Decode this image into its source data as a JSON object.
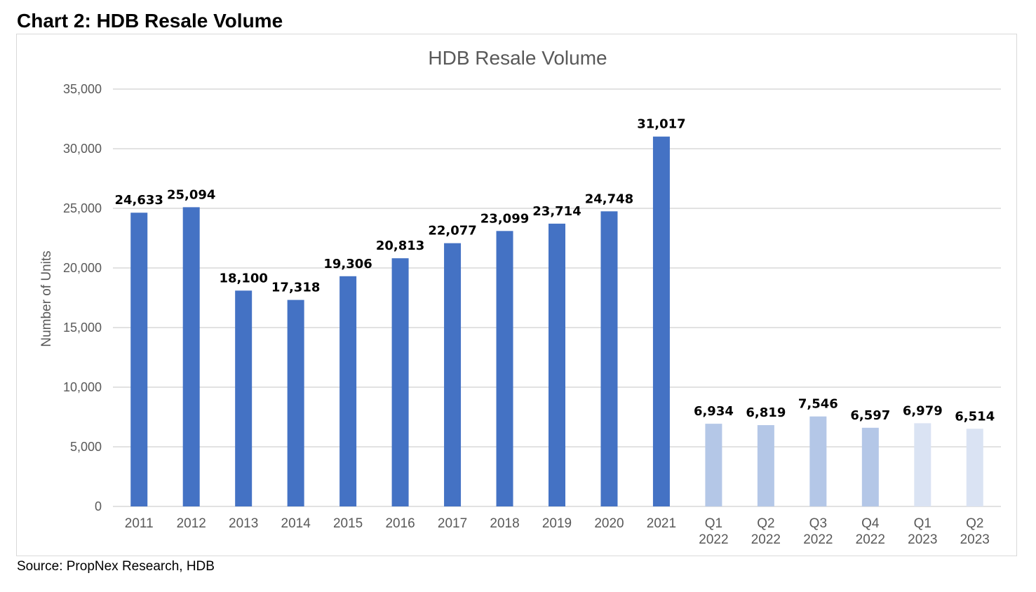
{
  "page": {
    "heading": "Chart 2: HDB Resale Volume",
    "source": "Source: PropNex Research, HDB"
  },
  "chart_data": {
    "type": "bar",
    "title": "HDB Resale Volume",
    "xlabel": "",
    "ylabel": "Number of Units",
    "ylim": [
      0,
      35000
    ],
    "yticks": [
      0,
      5000,
      10000,
      15000,
      20000,
      25000,
      30000,
      35000
    ],
    "ytick_labels": [
      "0",
      "5,000",
      "10,000",
      "15,000",
      "20,000",
      "25,000",
      "30,000",
      "35,000"
    ],
    "grid": true,
    "legend": "none",
    "categories": [
      "2011",
      "2012",
      "2013",
      "2014",
      "2015",
      "2016",
      "2017",
      "2018",
      "2019",
      "2020",
      "2021",
      "Q1 2022",
      "Q2 2022",
      "Q3 2022",
      "Q4 2022",
      "Q1 2023",
      "Q2 2023"
    ],
    "values": [
      24633,
      25094,
      18100,
      17318,
      19306,
      20813,
      22077,
      23099,
      23714,
      24748,
      31017,
      6934,
      6819,
      7546,
      6597,
      6979,
      6514
    ],
    "data_labels": [
      "24,633",
      "25,094",
      "18,100",
      "17,318",
      "19,306",
      "20,813",
      "22,077",
      "23,099",
      "23,714",
      "24,748",
      "31,017",
      "6,934",
      "6,819",
      "7,546",
      "6,597",
      "6,979",
      "6,514"
    ],
    "bar_colors": [
      "#4472c4",
      "#4472c4",
      "#4472c4",
      "#4472c4",
      "#4472c4",
      "#4472c4",
      "#4472c4",
      "#4472c4",
      "#4472c4",
      "#4472c4",
      "#4472c4",
      "#b4c7e7",
      "#b4c7e7",
      "#b4c7e7",
      "#b4c7e7",
      "#dae3f3",
      "#dae3f3"
    ]
  }
}
